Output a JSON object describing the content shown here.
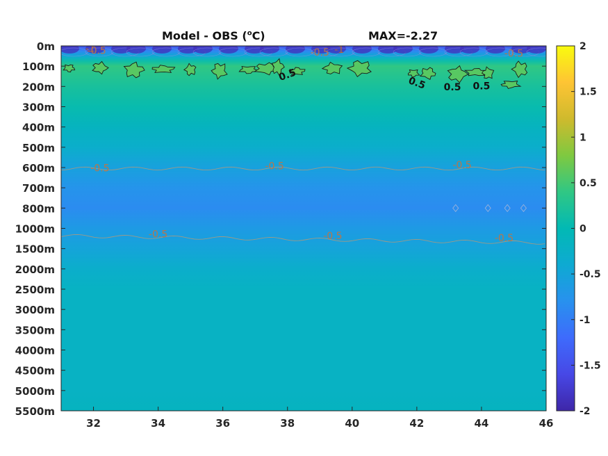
{
  "chart_data": {
    "type": "heatmap",
    "title_left": {
      "main": "Model - OBS (",
      "sup": "o",
      "unit": "C)"
    },
    "title_right": "MAX=-2.27",
    "x_ticks": [
      "32",
      "34",
      "36",
      "38",
      "40",
      "42",
      "44",
      "46"
    ],
    "x_tick_values": [
      32,
      34,
      36,
      38,
      40,
      42,
      44,
      46
    ],
    "xlim": [
      31,
      46
    ],
    "y_ticks": [
      "0m",
      "100m",
      "200m",
      "300m",
      "400m",
      "500m",
      "600m",
      "700m",
      "800m",
      "1000m",
      "1500m",
      "2000m",
      "2500m",
      "3000m",
      "3500m",
      "4000m",
      "4500m",
      "5000m",
      "5500m"
    ],
    "y_tick_depths": [
      0,
      100,
      200,
      300,
      400,
      500,
      600,
      700,
      800,
      1000,
      1500,
      2000,
      2500,
      3000,
      3500,
      4000,
      4500,
      5000,
      5500
    ],
    "colorbar": {
      "ticks": [
        "2",
        "1.5",
        "1",
        "0.5",
        "0",
        "-0.5",
        "-1",
        "-1.5",
        "-2"
      ],
      "tick_values": [
        2,
        1.5,
        1,
        0.5,
        0,
        -0.5,
        -1,
        -1.5,
        -2
      ],
      "clim": [
        -2,
        2
      ],
      "colormap": "parula"
    },
    "depth_profile": {
      "depths": [
        0,
        25,
        50,
        75,
        100,
        150,
        200,
        300,
        400,
        500,
        600,
        700,
        800,
        1000,
        1500,
        2000,
        2500,
        3000,
        4000,
        5000,
        5500
      ],
      "values": [
        -1.5,
        -0.9,
        -0.4,
        0.1,
        0.4,
        0.3,
        0.2,
        0.05,
        -0.15,
        -0.3,
        -0.55,
        -0.75,
        -0.85,
        -0.65,
        -0.5,
        -0.3,
        -0.2,
        -0.2,
        -0.2,
        -0.2,
        -0.15
      ]
    },
    "contour_labels": [
      {
        "text": "-1",
        "x": 31.9,
        "depth": 15,
        "level": -1
      },
      {
        "text": "-0.5",
        "x": 32.1,
        "depth": 25,
        "level": -0.5
      },
      {
        "text": "-0.5",
        "x": 39.0,
        "depth": 35,
        "level": -0.5
      },
      {
        "text": "-1",
        "x": 39.6,
        "depth": 20,
        "level": -1
      },
      {
        "text": "-0.5",
        "x": 45.0,
        "depth": 40,
        "level": -0.5
      },
      {
        "text": "0.5",
        "x": 38.0,
        "depth": 145,
        "level": 0.5
      },
      {
        "text": "0.5",
        "x": 42.0,
        "depth": 185,
        "level": 0.5
      },
      {
        "text": "0.5",
        "x": 43.1,
        "depth": 205,
        "level": 0.5
      },
      {
        "text": "0.5",
        "x": 44.0,
        "depth": 200,
        "level": 0.5
      },
      {
        "text": "-0.5",
        "x": 32.2,
        "depth": 605,
        "level": -0.5
      },
      {
        "text": "-0.5",
        "x": 37.6,
        "depth": 595,
        "level": -0.5
      },
      {
        "text": "-0.5",
        "x": 43.4,
        "depth": 590,
        "level": -0.5
      },
      {
        "text": "-0.5",
        "x": 34.0,
        "depth": 1150,
        "level": -0.5
      },
      {
        "text": "-0.5",
        "x": 39.4,
        "depth": 1200,
        "level": -0.5
      },
      {
        "text": "-0.5",
        "x": 44.7,
        "depth": 1250,
        "level": -0.5
      }
    ],
    "warm_patches": [
      {
        "x": 31.25,
        "depth": 110
      },
      {
        "x": 32.2,
        "depth": 108
      },
      {
        "x": 33.25,
        "depth": 120
      },
      {
        "x": 34.15,
        "depth": 115
      },
      {
        "x": 35.0,
        "depth": 118
      },
      {
        "x": 35.9,
        "depth": 122
      },
      {
        "x": 36.8,
        "depth": 118
      },
      {
        "x": 37.35,
        "depth": 112
      },
      {
        "x": 37.7,
        "depth": 105
      },
      {
        "x": 38.3,
        "depth": 125
      },
      {
        "x": 39.4,
        "depth": 112
      },
      {
        "x": 40.25,
        "depth": 110
      },
      {
        "x": 41.9,
        "depth": 135
      },
      {
        "x": 42.35,
        "depth": 135
      },
      {
        "x": 43.25,
        "depth": 140
      },
      {
        "x": 43.85,
        "depth": 130
      },
      {
        "x": 44.2,
        "depth": 135
      },
      {
        "x": 45.2,
        "depth": 115
      },
      {
        "x": 44.9,
        "depth": 190
      }
    ]
  }
}
